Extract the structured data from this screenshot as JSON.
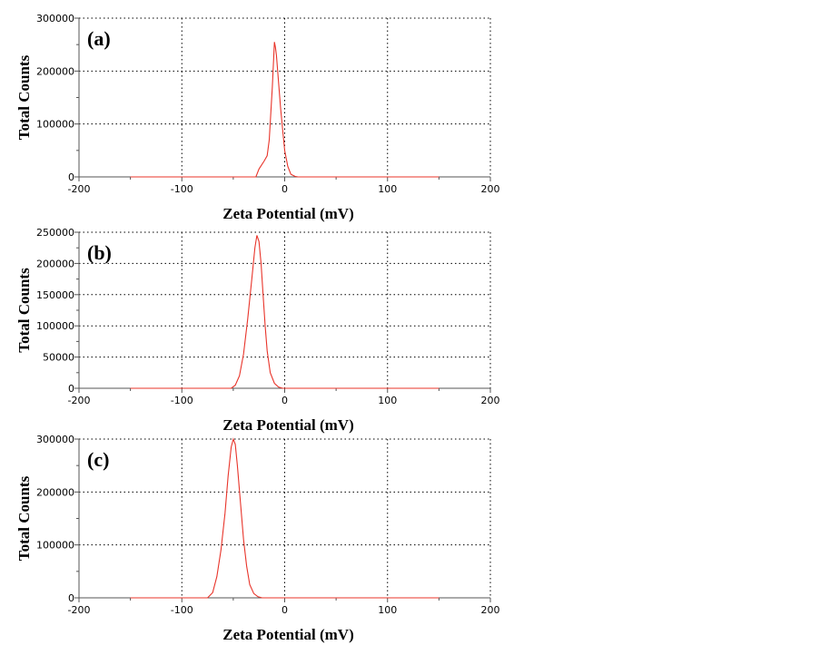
{
  "chart_data": [
    {
      "type": "line",
      "panel_label": "(a)",
      "xlabel": "Zeta Potential (mV)",
      "ylabel": "Total Counts",
      "xlim": [
        -200,
        200
      ],
      "ylim": [
        0,
        300000
      ],
      "x_ticks": [
        "-200",
        "-100",
        "0",
        "100",
        "200"
      ],
      "y_ticks": [
        "0",
        "100000",
        "200000",
        "300000"
      ],
      "y_tick_values": [
        0,
        100000,
        200000,
        300000
      ],
      "grid": true,
      "series": [
        {
          "color": "#e8342a",
          "x": [
            -150,
            -28,
            -25,
            -20,
            -17,
            -15,
            -12,
            -10,
            -9,
            -8,
            -6,
            -4,
            -2,
            0,
            3,
            6,
            10,
            13,
            15,
            150
          ],
          "y": [
            0,
            0,
            15000,
            30000,
            40000,
            70000,
            170000,
            255000,
            245000,
            230000,
            180000,
            130000,
            90000,
            50000,
            20000,
            5000,
            1000,
            0,
            0,
            0
          ]
        }
      ]
    },
    {
      "type": "line",
      "panel_label": "(b)",
      "xlabel": "Zeta Potential (mV)",
      "ylabel": "Total Counts",
      "xlim": [
        -200,
        200
      ],
      "ylim": [
        0,
        250000
      ],
      "x_ticks": [
        "-200",
        "-100",
        "0",
        "100",
        "200"
      ],
      "y_ticks": [
        "0",
        "50000",
        "100000",
        "150000",
        "200000",
        "250000"
      ],
      "y_tick_values": [
        0,
        50000,
        100000,
        150000,
        200000,
        250000
      ],
      "grid": true,
      "series": [
        {
          "color": "#e8342a",
          "x": [
            -150,
            -52,
            -48,
            -44,
            -40,
            -36,
            -32,
            -29,
            -27,
            -25,
            -23,
            -21,
            -19,
            -17,
            -14,
            -10,
            -6,
            -2,
            0,
            150
          ],
          "y": [
            0,
            0,
            5000,
            20000,
            55000,
            110000,
            175000,
            225000,
            245000,
            235000,
            200000,
            150000,
            100000,
            60000,
            25000,
            8000,
            2000,
            0,
            0,
            0
          ]
        }
      ]
    },
    {
      "type": "line",
      "panel_label": "(c)",
      "xlabel": "Zeta Potential (mV)",
      "ylabel": "Total Counts",
      "xlim": [
        -200,
        200
      ],
      "ylim": [
        0,
        300000
      ],
      "x_ticks": [
        "-200",
        "-100",
        "0",
        "100",
        "200"
      ],
      "y_ticks": [
        "0",
        "100000",
        "200000",
        "300000"
      ],
      "y_tick_values": [
        0,
        100000,
        200000,
        300000
      ],
      "grid": true,
      "series": [
        {
          "color": "#e8342a",
          "x": [
            -150,
            -75,
            -70,
            -66,
            -62,
            -58,
            -55,
            -52,
            -50,
            -48,
            -46,
            -43,
            -40,
            -37,
            -34,
            -30,
            -26,
            -22,
            -20,
            150
          ],
          "y": [
            0,
            0,
            10000,
            40000,
            90000,
            160000,
            230000,
            285000,
            300000,
            290000,
            250000,
            180000,
            110000,
            60000,
            25000,
            8000,
            2000,
            0,
            0,
            0
          ]
        }
      ]
    }
  ]
}
